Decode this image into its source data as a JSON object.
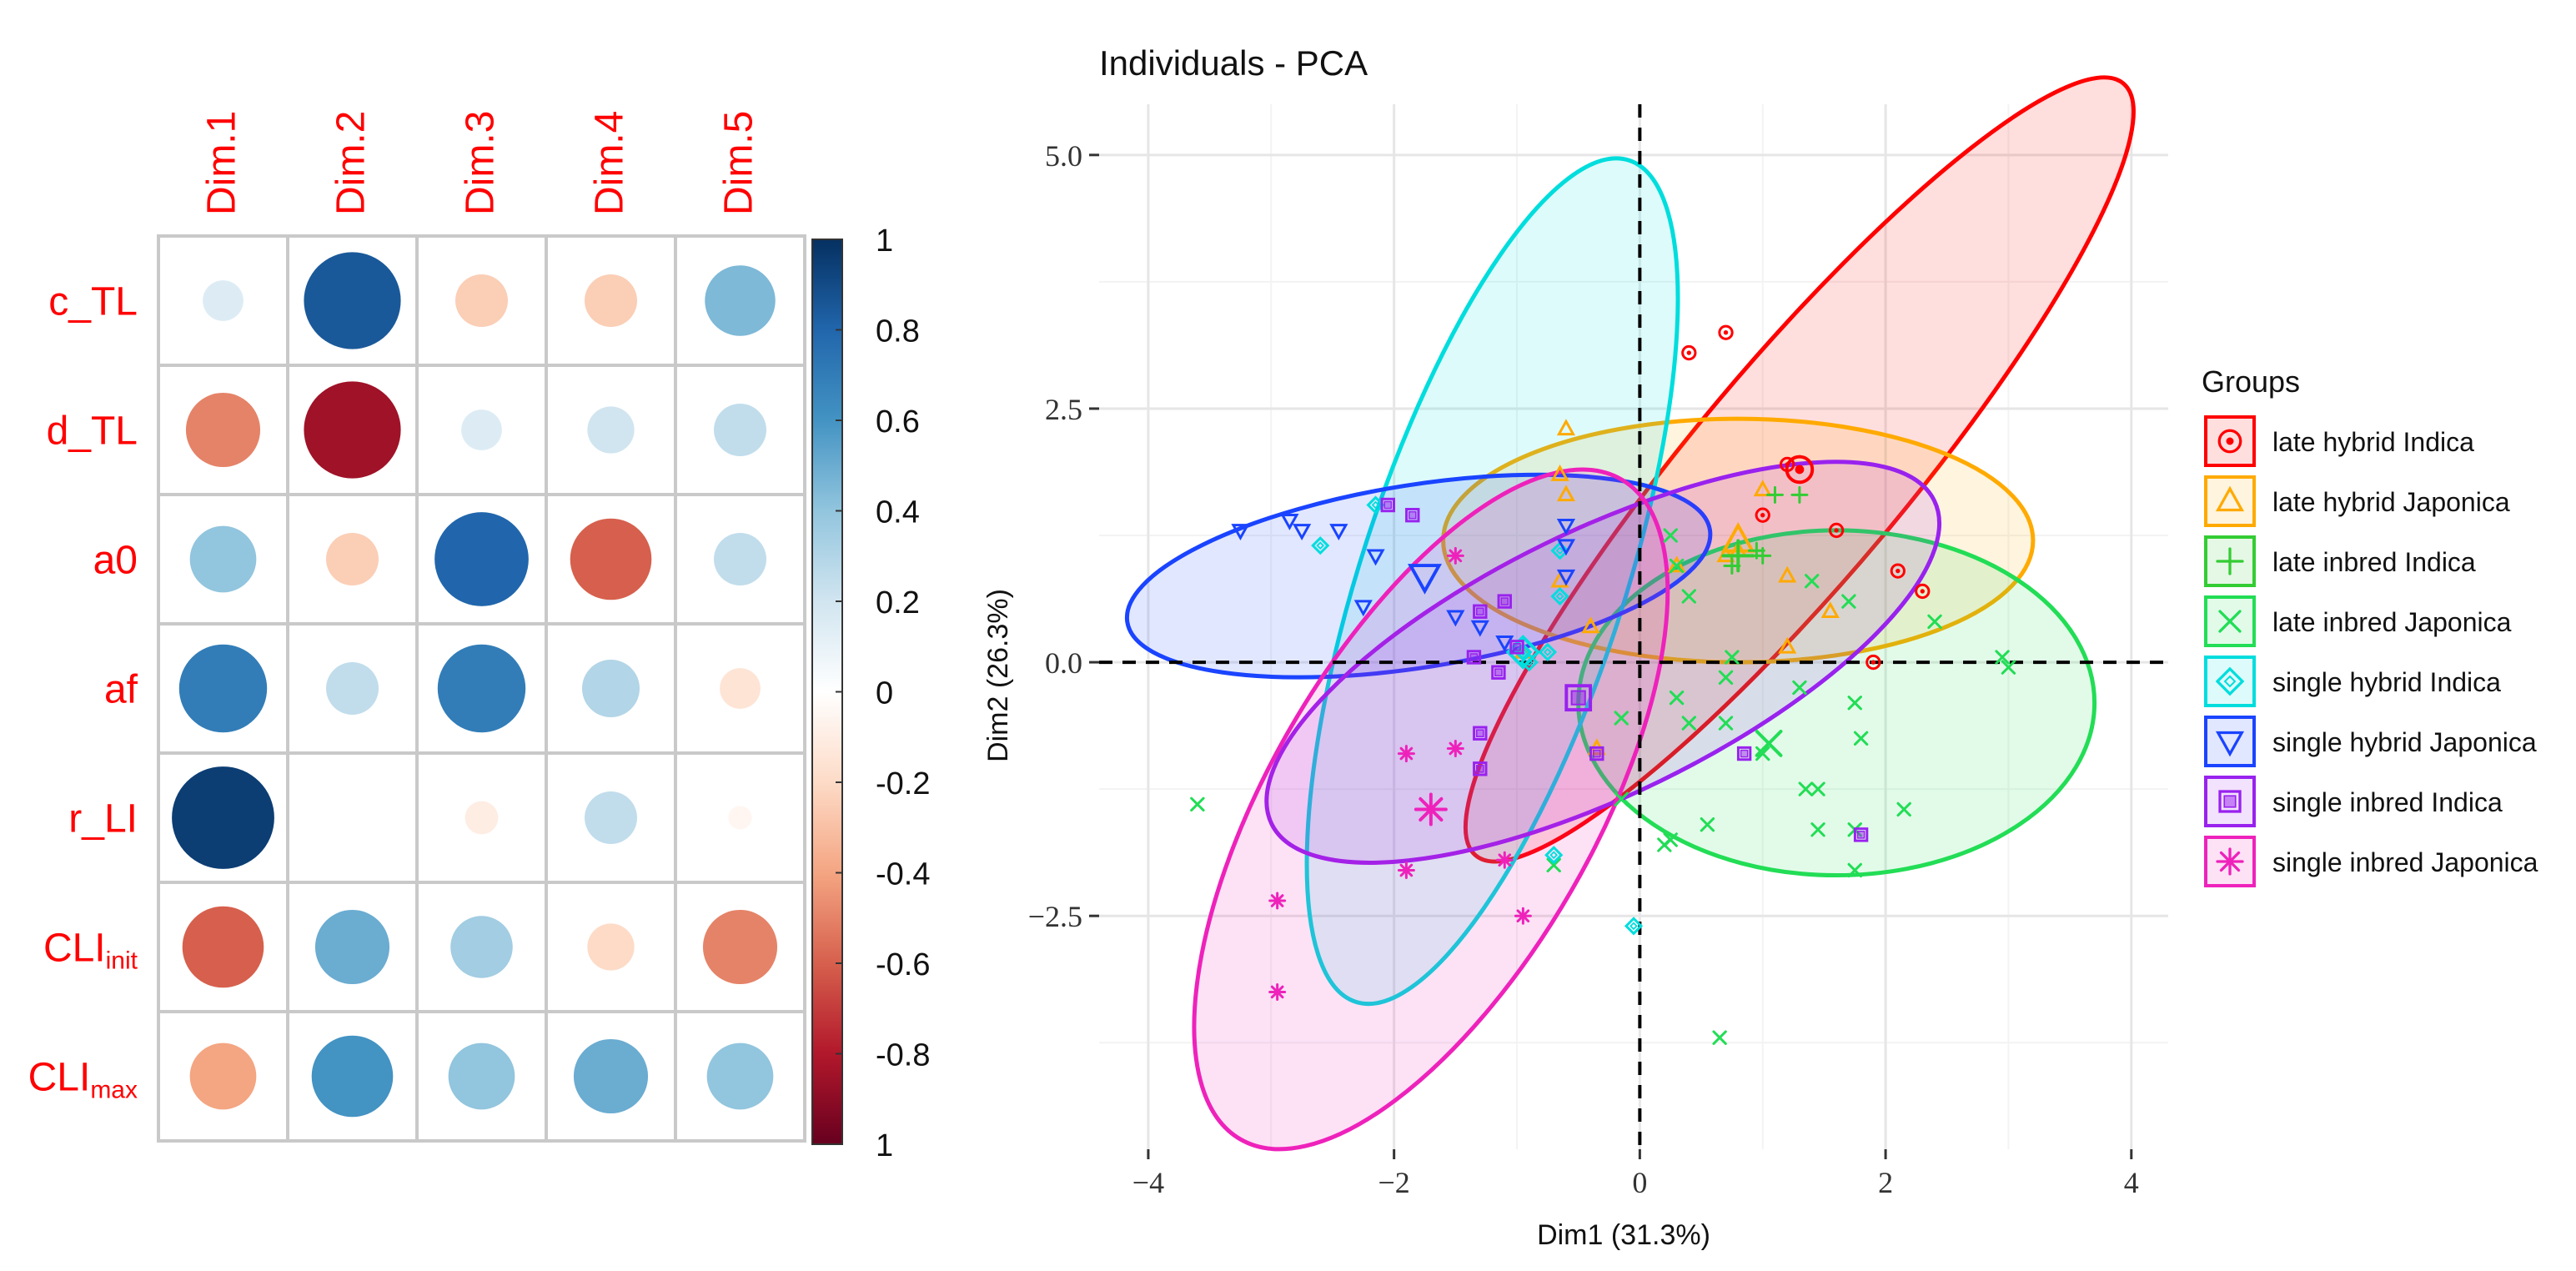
{
  "chart_data": [
    {
      "type": "heatmap",
      "columns": [
        "Dim.1",
        "Dim.2",
        "Dim.3",
        "Dim.4",
        "Dim.5"
      ],
      "rows": [
        {
          "label": "c_TL",
          "base": "c_TL",
          "sub": ""
        },
        {
          "label": "d_TL",
          "base": "d_TL",
          "sub": ""
        },
        {
          "label": "a0",
          "base": "a0",
          "sub": ""
        },
        {
          "label": "af",
          "base": "af",
          "sub": ""
        },
        {
          "label": "r_LI",
          "base": "r_LI",
          "sub": ""
        },
        {
          "label": "CLIinit",
          "base": "CLI",
          "sub": "init"
        },
        {
          "label": "CLImax",
          "base": "CLI",
          "sub": "max"
        }
      ],
      "values": [
        [
          0.15,
          0.85,
          -0.25,
          -0.25,
          0.45
        ],
        [
          -0.5,
          -0.85,
          0.15,
          0.2,
          0.25
        ],
        [
          0.4,
          -0.25,
          0.8,
          -0.6,
          0.25
        ],
        [
          0.7,
          0.25,
          0.7,
          0.3,
          -0.15
        ],
        [
          0.95,
          0.0,
          -0.1,
          0.25,
          -0.05
        ],
        [
          -0.6,
          0.5,
          0.35,
          -0.2,
          -0.5
        ],
        [
          -0.4,
          0.6,
          0.4,
          0.5,
          0.4
        ]
      ],
      "colorbar": {
        "range": [
          -1,
          1
        ],
        "tick_labels": [
          "1",
          "0.8",
          "0.6",
          "0.4",
          "0.2",
          "0",
          "-0.2",
          "-0.4",
          "-0.6",
          "-0.8",
          "1"
        ]
      }
    },
    {
      "type": "scatter",
      "title": "Individuals - PCA",
      "xlabel": "Dim1 (31.3%)",
      "ylabel": "Dim2 (26.3%)",
      "xlim": [
        -4.4,
        4.3
      ],
      "ylim": [
        -4.8,
        5.5
      ],
      "x_ticks": [
        -4,
        -2,
        0,
        2,
        4
      ],
      "x_tick_labels": [
        "−4",
        "−2",
        "0",
        "2",
        "4"
      ],
      "y_ticks": [
        -2.5,
        0.0,
        2.5,
        5.0
      ],
      "y_tick_labels": [
        "−2.5",
        "0.0",
        "2.5",
        "5.0"
      ],
      "legend": {
        "title": "Groups",
        "position": "right"
      },
      "series": [
        {
          "name": "late hybrid Indica",
          "color": "#ff0000",
          "marker": "circle-dot",
          "centroid": [
            1.3,
            1.9
          ],
          "ellipse": {
            "cx": 1.3,
            "cy": 1.9,
            "rx": 4.1,
            "ry": 1.05,
            "angle": -50
          },
          "points": [
            [
              0.4,
              3.05
            ],
            [
              0.7,
              3.25
            ],
            [
              1.0,
              1.45
            ],
            [
              1.6,
              1.3
            ],
            [
              2.1,
              0.9
            ],
            [
              2.3,
              0.7
            ],
            [
              1.9,
              0.0
            ],
            [
              1.2,
              1.95
            ]
          ]
        },
        {
          "name": "late hybrid Japonica",
          "color": "#ffaa00",
          "marker": "triangle",
          "centroid": [
            0.8,
            1.2
          ],
          "ellipse": {
            "cx": 0.8,
            "cy": 1.2,
            "rx": 2.4,
            "ry": 1.2,
            "angle": 0
          },
          "points": [
            [
              -0.6,
              2.3
            ],
            [
              -0.65,
              1.85
            ],
            [
              -0.6,
              1.65
            ],
            [
              1.0,
              1.7
            ],
            [
              0.7,
              1.05
            ],
            [
              0.8,
              1.1
            ],
            [
              1.2,
              0.85
            ],
            [
              1.55,
              0.5
            ],
            [
              -0.65,
              0.8
            ],
            [
              -0.4,
              0.35
            ],
            [
              -0.35,
              -0.85
            ],
            [
              0.3,
              0.95
            ],
            [
              1.2,
              0.15
            ],
            [
              -0.95,
              0.1
            ]
          ]
        },
        {
          "name": "late inbred Indica",
          "color": "#33cc33",
          "marker": "plus",
          "centroid": [
            0.8,
            1.05
          ],
          "ellipse": null,
          "points": [
            [
              1.1,
              1.65
            ],
            [
              1.3,
              1.65
            ],
            [
              0.75,
              0.95
            ],
            [
              0.95,
              1.1
            ],
            [
              1.0,
              1.05
            ]
          ]
        },
        {
          "name": "late inbred Japonica",
          "color": "#22dd55",
          "marker": "cross",
          "centroid": [
            1.05,
            -0.8
          ],
          "ellipse": {
            "cx": 1.6,
            "cy": -0.4,
            "rx": 2.1,
            "ry": 1.7,
            "angle": 0
          },
          "points": [
            [
              -3.6,
              -1.4
            ],
            [
              0.25,
              1.25
            ],
            [
              0.3,
              0.95
            ],
            [
              0.4,
              0.65
            ],
            [
              1.4,
              0.8
            ],
            [
              1.7,
              0.6
            ],
            [
              2.4,
              0.4
            ],
            [
              3.0,
              -0.05
            ],
            [
              2.95,
              0.05
            ],
            [
              0.3,
              -0.35
            ],
            [
              0.7,
              -0.15
            ],
            [
              1.3,
              -0.25
            ],
            [
              1.75,
              -0.4
            ],
            [
              -0.15,
              -0.55
            ],
            [
              0.4,
              -0.6
            ],
            [
              0.7,
              -0.6
            ],
            [
              1.0,
              -0.9
            ],
            [
              1.35,
              -1.25
            ],
            [
              1.45,
              -1.25
            ],
            [
              0.25,
              -1.75
            ],
            [
              0.2,
              -1.8
            ],
            [
              -0.15,
              -1.35
            ],
            [
              0.55,
              -1.6
            ],
            [
              1.45,
              -1.65
            ],
            [
              1.75,
              -1.65
            ],
            [
              1.75,
              -2.05
            ],
            [
              2.15,
              -1.45
            ],
            [
              0.65,
              -3.7
            ],
            [
              1.8,
              -0.75
            ],
            [
              0.75,
              0.05
            ],
            [
              -0.7,
              -2.0
            ]
          ]
        },
        {
          "name": "single hybrid Indica",
          "color": "#00dddd",
          "marker": "diamond",
          "centroid": [
            -0.95,
            0.1
          ],
          "ellipse": {
            "cx": -1.2,
            "cy": 0.8,
            "rx": 3.6,
            "ry": 1.3,
            "angle": -72
          },
          "points": [
            [
              -2.15,
              1.55
            ],
            [
              -2.6,
              1.15
            ],
            [
              -0.65,
              1.1
            ],
            [
              -0.65,
              0.65
            ],
            [
              -0.95,
              0.1
            ],
            [
              -0.75,
              0.1
            ],
            [
              -0.9,
              0.0
            ],
            [
              -0.7,
              -1.9
            ],
            [
              -0.05,
              -2.6
            ]
          ]
        },
        {
          "name": "single hybrid Japonica",
          "color": "#1a44ff",
          "marker": "triangle-down",
          "centroid": [
            -1.75,
            0.85
          ],
          "ellipse": {
            "cx": -1.8,
            "cy": 0.85,
            "rx": 2.4,
            "ry": 0.9,
            "angle": -9
          },
          "points": [
            [
              -3.25,
              1.3
            ],
            [
              -2.85,
              1.4
            ],
            [
              -2.75,
              1.3
            ],
            [
              -2.45,
              1.3
            ],
            [
              -2.15,
              1.05
            ],
            [
              -2.25,
              0.55
            ],
            [
              -1.5,
              0.45
            ],
            [
              -1.3,
              0.35
            ],
            [
              -1.1,
              0.2
            ],
            [
              -0.6,
              1.35
            ],
            [
              -0.6,
              1.15
            ],
            [
              -0.6,
              0.85
            ]
          ]
        },
        {
          "name": "single inbred Indica",
          "color": "#9922ee",
          "marker": "square-cross",
          "centroid": [
            -0.5,
            -0.35
          ],
          "ellipse": {
            "cx": -0.3,
            "cy": 0.0,
            "rx": 3.0,
            "ry": 1.3,
            "angle": -26
          },
          "points": [
            [
              -2.05,
              1.55
            ],
            [
              -1.85,
              1.45
            ],
            [
              -1.1,
              0.6
            ],
            [
              -1.3,
              0.5
            ],
            [
              -1.35,
              0.05
            ],
            [
              -1.0,
              0.15
            ],
            [
              -1.15,
              -0.1
            ],
            [
              -1.3,
              -0.7
            ],
            [
              -1.3,
              -1.05
            ],
            [
              -0.35,
              -0.9
            ],
            [
              0.85,
              -0.9
            ],
            [
              1.8,
              -1.7
            ]
          ]
        },
        {
          "name": "single inbred Japonica",
          "color": "#ee22bb",
          "marker": "asterisk",
          "centroid": [
            -1.7,
            -1.45
          ],
          "ellipse": {
            "cx": -1.7,
            "cy": -1.45,
            "rx": 3.1,
            "ry": 1.6,
            "angle": -60
          },
          "points": [
            [
              -1.5,
              1.05
            ],
            [
              -1.9,
              -0.9
            ],
            [
              -1.5,
              -0.85
            ],
            [
              -1.1,
              -1.95
            ],
            [
              -1.9,
              -2.05
            ],
            [
              -2.95,
              -2.35
            ],
            [
              -0.95,
              -2.5
            ],
            [
              -2.95,
              -3.25
            ]
          ]
        }
      ]
    }
  ]
}
